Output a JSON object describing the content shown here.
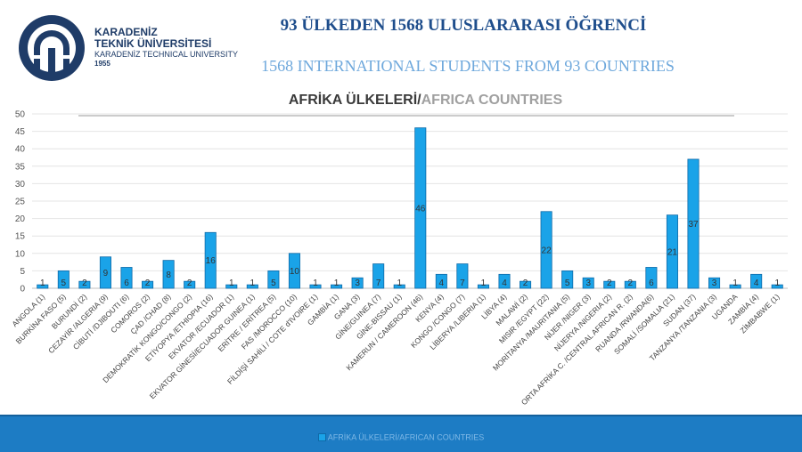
{
  "header": {
    "university_line1": "KARADENİZ",
    "university_line2": "TEKNİK ÜNİVERSİTESİ",
    "university_line3": "KARADENİZ TECHNICAL UNIVERSITY",
    "university_year": "1955",
    "title_tr": "93 ÜLKEDEN 1568 ULUSLARARASI ÖĞRENCİ",
    "title_en": "1568 INTERNATIONAL STUDENTS FROM 93 COUNTRIES"
  },
  "colors": {
    "bar_fill": "#1aa3e8",
    "bar_stroke": "#0f6aa8",
    "brand_dark": "#1f3c68",
    "footer": "#1d7cc4"
  },
  "chart_data": {
    "type": "bar",
    "title_tr": "AFRİKA ÜLKELERİ/",
    "title_en": "AFRICA COUNTRIES",
    "ylim": [
      0,
      50
    ],
    "yticks": [
      0,
      5,
      10,
      15,
      20,
      25,
      30,
      35,
      40,
      45,
      50
    ],
    "grid": true,
    "legend_position": "bottom",
    "categories": [
      "ANGOLA (1)",
      "BURKİNA FASO (5)",
      "BURUNDİ (2)",
      "CEZAYİR /ALGERIA (9)",
      "CİBUTİ /DJIBOUTI (6)",
      "COMOROS (2)",
      "ÇAD /CHAD (8)",
      "DEMOKRATİK KONGO/CONGO (2)",
      "ETİYOPYA /ETHIOPIA (16)",
      "EKVATOR /ECUADOR (1)",
      "EKVATOR GİNESİ/ECUADOR GUINEA (1)",
      "ERİTRE / ERİTREA (5)",
      "FAS /MOROCCO (10)",
      "FİLDİŞİ SAHİLİ / COTE d'IVOIRE (1)",
      "GAMBİA (1)",
      "GANA (3)",
      "GİNE/GUINEA (7)",
      "GİNE-BISSAU (1)",
      "KAMERUN / CAMEROON (46)",
      "KENYA (4)",
      "KONGO /CONGO (7)",
      "LİBERYA /LIBERIA (1)",
      "LİBYA (4)",
      "MALAWİ (2)",
      "MISIR /EGYPT (22)",
      "MORİTANYA /MAURITANIA (5)",
      "NİJER /NIGER (3)",
      "NİJERYA /NIGERIA (2)",
      "ORTA AFRİKA C. /CENTRAL AFRICAN R. (2)",
      "RUANDA /RWANDA(6)",
      "SOMALİ /SOMALIA (21)",
      "SUDAN (37)",
      "TANZANYA /TANZANIA (3)",
      "UGANDA",
      "ZAMBİA (4)",
      "ZİMBABWE (1)"
    ],
    "series": [
      {
        "name": "AFRİKA ÜLKELERİ/AFRICAN COUNTRIES",
        "values": [
          1,
          5,
          2,
          9,
          6,
          2,
          8,
          2,
          16,
          1,
          1,
          5,
          10,
          1,
          1,
          3,
          7,
          1,
          46,
          4,
          7,
          1,
          4,
          2,
          22,
          5,
          3,
          2,
          2,
          6,
          21,
          37,
          3,
          1,
          4,
          1
        ]
      }
    ]
  }
}
